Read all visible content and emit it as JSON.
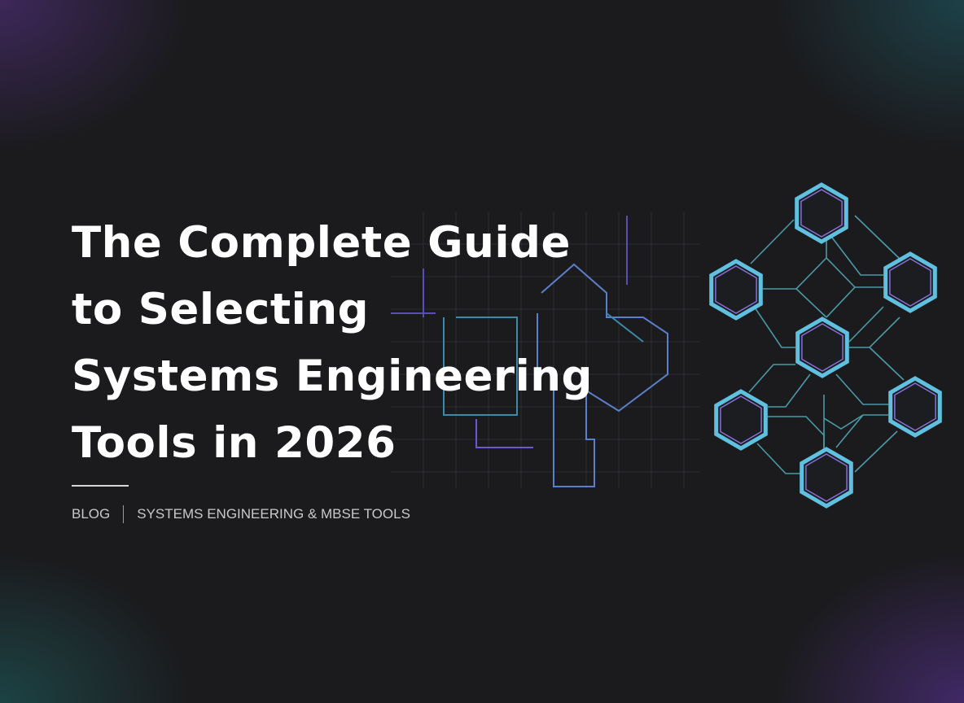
{
  "title_lines": [
    "The Complete Guide",
    "to Selecting",
    "Systems Engineering",
    "Tools in 2026"
  ],
  "meta": {
    "category": "BLOG",
    "topic": "SYSTEMS ENGINEERING & MBSE TOOLS"
  },
  "colors": {
    "background": "#1b1b1e",
    "hex_outline": "#5fc0e0",
    "hex_inner": "#8a6fd8",
    "connector": "#4a9aa8",
    "circuit": "#6a5bc8"
  },
  "graphic_icon": "hexagon-network-icon"
}
